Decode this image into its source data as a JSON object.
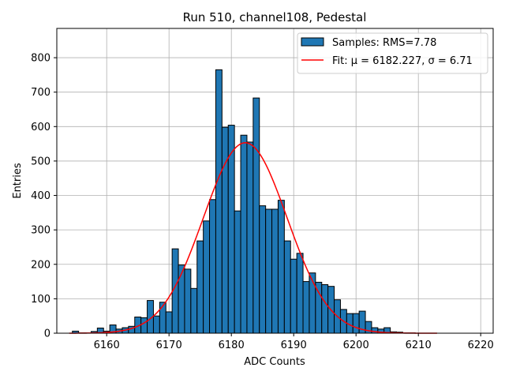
{
  "chart_data": {
    "type": "bar",
    "title": "Run 510, channel108, Pedestal",
    "xlabel": "ADC Counts",
    "ylabel": "Entries",
    "xlim": [
      6152,
      6222
    ],
    "ylim": [
      0,
      885
    ],
    "xticks": [
      6160,
      6170,
      6180,
      6190,
      6200,
      6210,
      6220
    ],
    "yticks": [
      0,
      100,
      200,
      300,
      400,
      500,
      600,
      700,
      800
    ],
    "grid": true,
    "legend_position": "top-right",
    "histogram": {
      "name": "Samples: RMS=7.78",
      "color": "#1f77b4",
      "edge_color": "#000000",
      "bin_width": 1,
      "bin_centers": [
        6155,
        6156,
        6157,
        6158,
        6159,
        6160,
        6161,
        6162,
        6163,
        6164,
        6165,
        6166,
        6167,
        6168,
        6169,
        6170,
        6171,
        6172,
        6173,
        6174,
        6175,
        6176,
        6177,
        6178,
        6179,
        6180,
        6181,
        6182,
        6183,
        6184,
        6185,
        6186,
        6187,
        6188,
        6189,
        6190,
        6191,
        6192,
        6193,
        6194,
        6195,
        6196,
        6197,
        6198,
        6199,
        6200,
        6201,
        6202,
        6203,
        6204,
        6205,
        6206,
        6207,
        6208,
        6209
      ],
      "counts": [
        6,
        1,
        1,
        5,
        15,
        6,
        24,
        12,
        16,
        20,
        47,
        45,
        95,
        50,
        90,
        62,
        245,
        198,
        186,
        130,
        268,
        326,
        388,
        765,
        598,
        604,
        355,
        575,
        555,
        683,
        370,
        360,
        360,
        386,
        268,
        215,
        232,
        150,
        175,
        148,
        141,
        136,
        97,
        69,
        57,
        57,
        64,
        34,
        16,
        12,
        16,
        4,
        3,
        1,
        1
      ]
    },
    "series": [
      {
        "name": "Fit: μ = 6182.227, σ = 6.71",
        "type": "line",
        "color": "#ff0000",
        "x_range": [
          6154,
          6213
        ],
        "mu": 6182.227,
        "sigma": 6.71,
        "amplitude": 553
      }
    ]
  }
}
